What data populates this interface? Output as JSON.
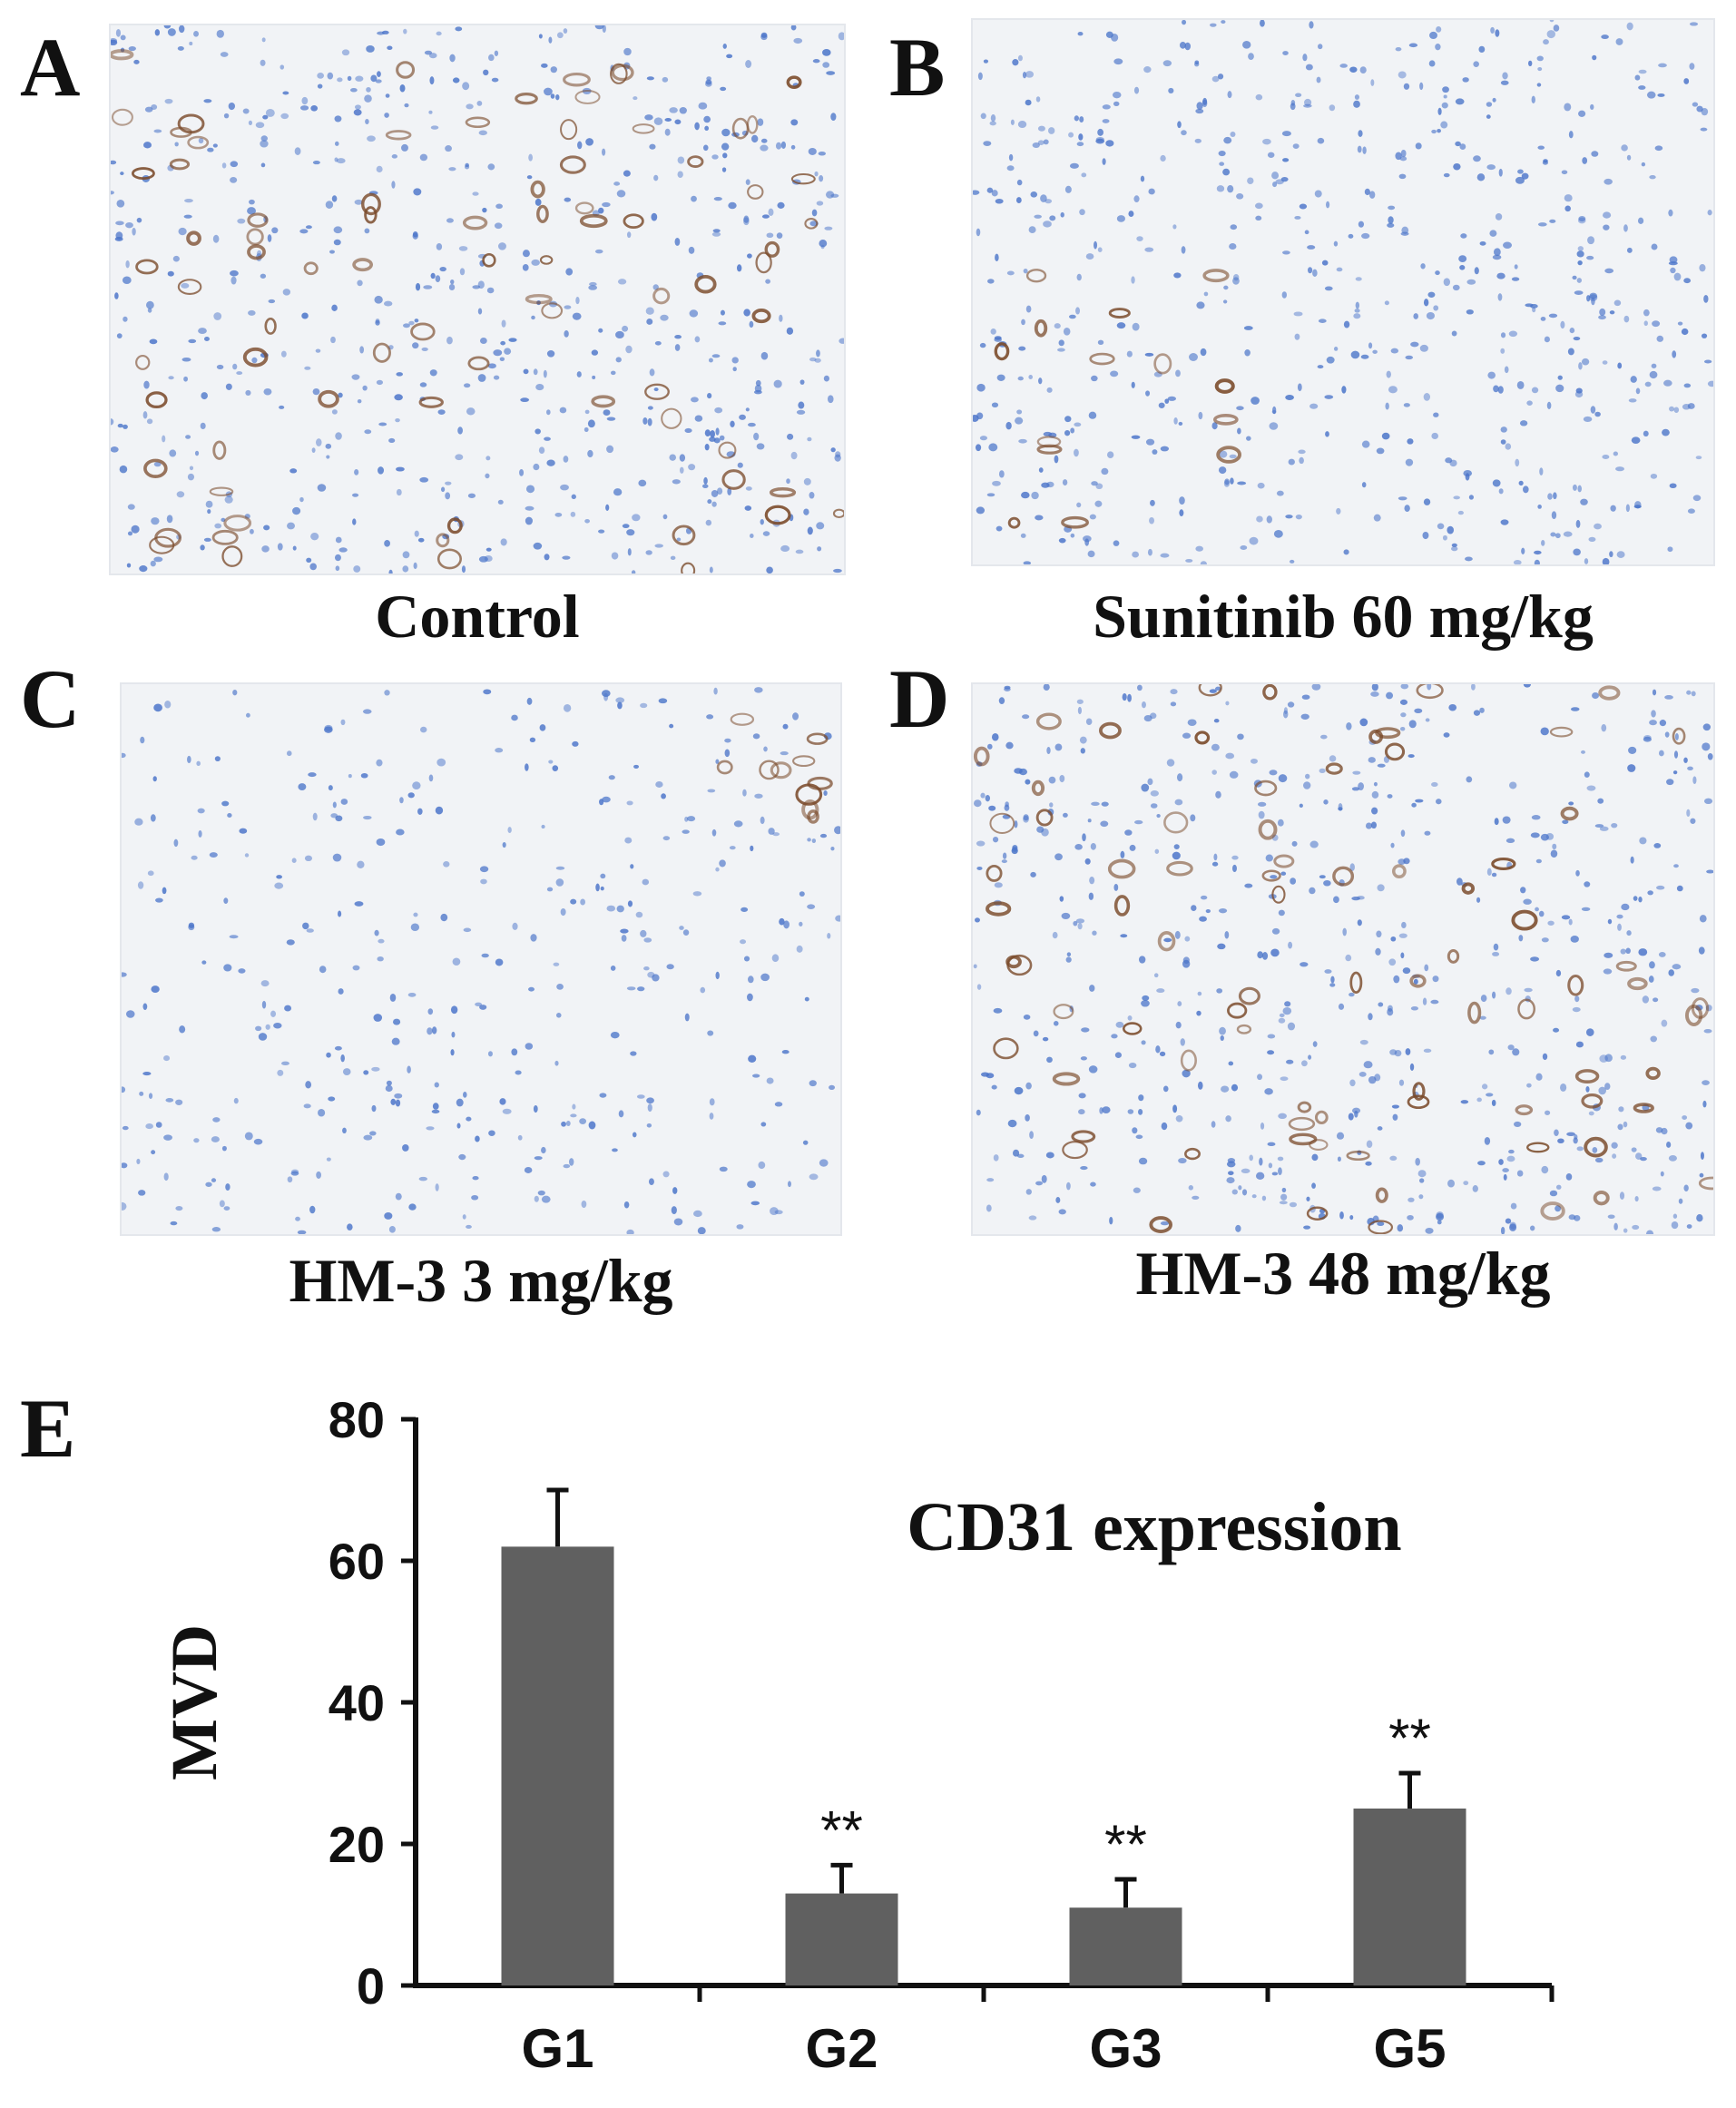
{
  "panels": [
    {
      "letter": "A",
      "caption": "Control",
      "density": "high",
      "seed": 11
    },
    {
      "letter": "B",
      "caption": "Sunitinib 60 mg/kg",
      "density": "low",
      "seed": 23
    },
    {
      "letter": "C",
      "caption": "HM-3 3 mg/kg",
      "density": "minimal",
      "seed": 37
    },
    {
      "letter": "D",
      "caption": "HM-3 48 mg/kg",
      "density": "high",
      "seed": 53
    }
  ],
  "colors": {
    "nuclei": "#4a74c9",
    "vessels": "#7a4a2a",
    "background": "#f1f3f6",
    "bar": "#606060"
  },
  "chart_letter": "E",
  "chart_data": {
    "type": "bar",
    "title": "CD31 expression",
    "categories": [
      "G1",
      "G2",
      "G3",
      "G5"
    ],
    "values": [
      62,
      13,
      11,
      25
    ],
    "errors": [
      8,
      4,
      4,
      5
    ],
    "annotations": [
      "",
      "**",
      "**",
      "**"
    ],
    "xlabel": "",
    "ylabel": "MVD",
    "ylim": [
      0,
      80
    ],
    "yticks": [
      0,
      20,
      40,
      60,
      80
    ],
    "grid": false
  }
}
